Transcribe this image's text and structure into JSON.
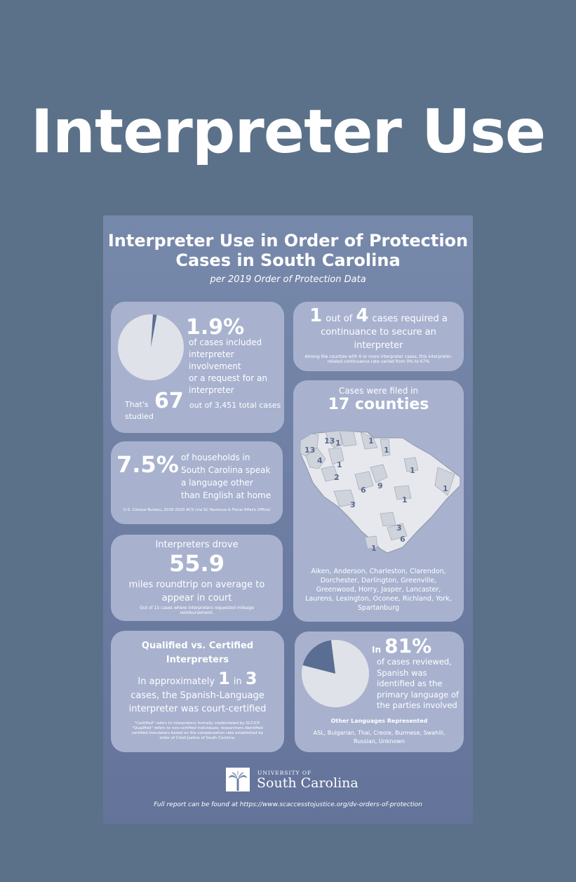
{
  "page_title": "Interpreter Use",
  "poster": {
    "title_line1": "Interpreter Use in Order of Protection",
    "title_line2": "Cases in South Carolina",
    "subtitle": "per 2019 Order of Protection Data",
    "footer_note": "Full report can be found at https://www.scaccesstojustice.org/dv-orders-of-protection"
  },
  "stat_cases": {
    "percent": "1.9%",
    "percent_value": 1.9,
    "desc": [
      "of cases included",
      "interpreter involvement",
      "or a request for an",
      "interpreter"
    ],
    "thats": "That's",
    "studied": "studied",
    "count": "67",
    "total": "out of 3,451 total cases"
  },
  "continuance": {
    "num1": "1",
    "out_of": "out of",
    "num2": "4",
    "line1_rest": "cases required a",
    "line2": "continuance to secure an",
    "line3": "interpreter",
    "note1": "Among the counties with 6 or more interpreter cases, this interpreter-",
    "note2": "related continuance rate varied from 0% to 67%"
  },
  "households": {
    "percent": "7.5%",
    "desc": [
      "of households in",
      "South Carolina speak",
      "a language other",
      "than English at home"
    ],
    "source": "U.S. Census Bureau, 2016-2020 ACS (via SC Revenue & Fiscal Affairs Office)"
  },
  "counties": {
    "header": "Cases were filed in",
    "count_label": "17 counties",
    "map_numbers": [
      "13",
      "13",
      "1",
      "1",
      "1",
      "4",
      "1",
      "2",
      "9",
      "6",
      "1",
      "1",
      "1",
      "3",
      "3",
      "6",
      "1"
    ],
    "list": [
      "Aiken, Anderson, Charleston, Clarendon,",
      "Dorchester, Darlington, Greenville,",
      "Greenwood, Horry, Jasper, Lancaster,",
      "Laurens, Lexington, Oconee, Richland, York,",
      "Spartanburg"
    ]
  },
  "mileage": {
    "header": "Interpreters drove",
    "value": "55.9",
    "line1": "miles roundtrip on average to",
    "line2": "appear in court",
    "note1": "Out of 15 cases where interpreters requested mileage",
    "note2": "reimbursement."
  },
  "certified": {
    "title1": "Qualified vs. Certified",
    "title2": "Interpreters",
    "approx": "In approximately",
    "num1": "1",
    "in": "in",
    "num2": "3",
    "line2": "cases, the Spanish-Language",
    "line3": "interpreter was court-certified",
    "notes": [
      "\"Certified\" refers to interpreters formally credentialed by SCCICP.",
      "\"Qualified\" refers to non-certified individuals; researchers identified",
      "certified translators based on the compensation rate established by",
      "order of Chief Justice of South Carolina."
    ]
  },
  "spanish": {
    "in": "In",
    "percent": "81%",
    "percent_value": 81,
    "desc": [
      "of cases reviewed,",
      "Spanish was",
      "identified as the",
      "primary language of",
      "the parties involved"
    ],
    "other_header": "Other Languages Represented",
    "other_line1": "ASL, Bulgarian, Thai, Creole, Burmese, Swahili,",
    "other_line2": "Russian, Unknown"
  },
  "logo": {
    "university_of": "UNIVERSITY OF",
    "name": "South Carolina"
  },
  "colors": {
    "background": "#5b7189",
    "card": "#a8b2cf",
    "pie_light": "#dfe2e8",
    "pie_dark": "#5a6e94"
  }
}
